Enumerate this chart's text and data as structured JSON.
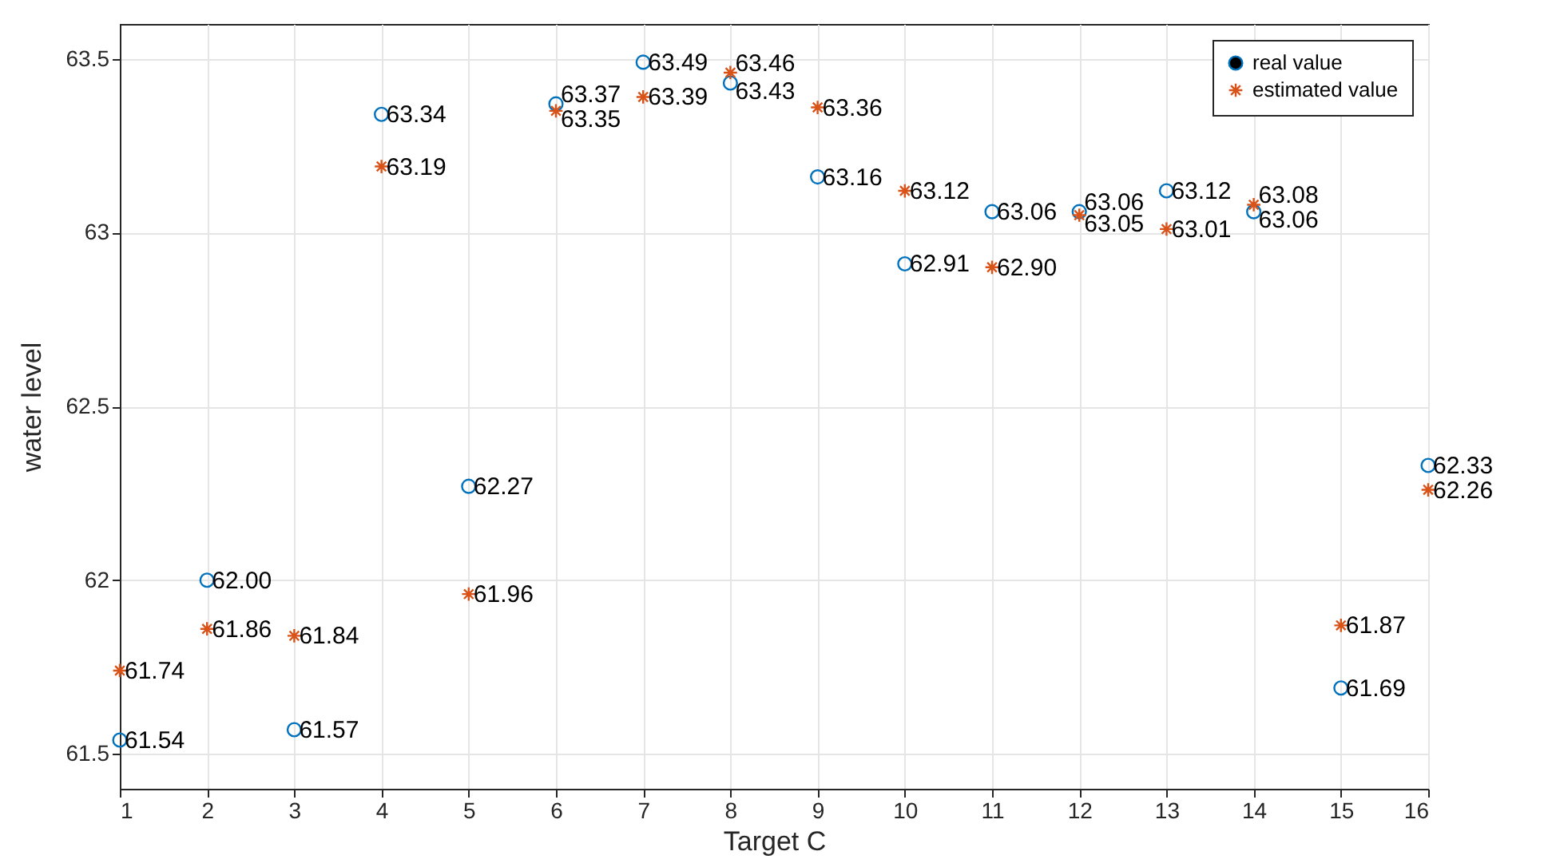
{
  "chart_data": {
    "type": "scatter",
    "xlabel": "Target C",
    "ylabel": "water level",
    "x": [
      1,
      2,
      3,
      4,
      5,
      6,
      7,
      8,
      9,
      10,
      11,
      12,
      13,
      14,
      15,
      16
    ],
    "xlim": [
      1,
      16
    ],
    "xticks": [
      1,
      2,
      3,
      4,
      5,
      6,
      7,
      8,
      9,
      10,
      11,
      12,
      13,
      14,
      15,
      16
    ],
    "ylim": [
      61.4,
      63.6
    ],
    "yticks": [
      61.5,
      62,
      62.5,
      63,
      63.5
    ],
    "grid": true,
    "legend": "top right",
    "series": [
      {
        "name": "real value",
        "color": "#0072bd",
        "marker": "circle",
        "values": [
          61.54,
          62.0,
          61.57,
          63.34,
          62.27,
          63.37,
          63.49,
          63.43,
          63.16,
          62.91,
          63.06,
          63.06,
          63.12,
          63.06,
          61.69,
          62.33
        ],
        "value_labels": [
          "61.54",
          "62.00",
          "61.57",
          "63.34",
          "62.27",
          "63.37",
          "63.49",
          "63.43",
          "63.16",
          "62.91",
          "63.06",
          "63.06",
          "63.12",
          "63.06",
          "61.69",
          "62.33"
        ]
      },
      {
        "name": "estimated value",
        "color": "#d95319",
        "marker": "cross",
        "values": [
          61.74,
          61.86,
          61.84,
          63.19,
          61.96,
          63.35,
          63.39,
          63.46,
          63.36,
          63.12,
          62.9,
          63.05,
          63.01,
          63.08,
          61.87,
          62.26
        ],
        "value_labels": [
          "61.74",
          "61.86",
          "61.84",
          "63.19",
          "61.96",
          "63.35",
          "63.39",
          "63.46",
          "63.36",
          "63.12",
          "62.90",
          "63.05",
          "63.01",
          "63.08",
          "61.87",
          "62.26"
        ]
      }
    ]
  }
}
